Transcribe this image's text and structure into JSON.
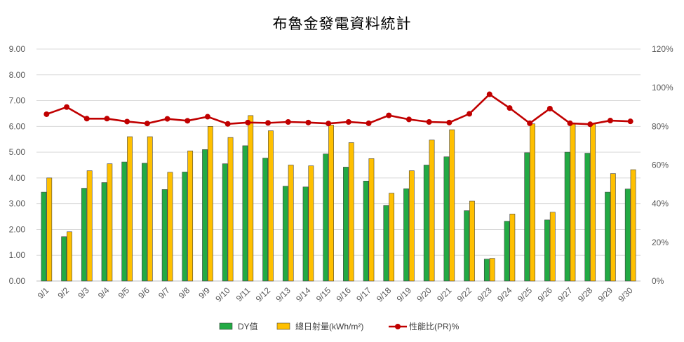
{
  "chart_data": {
    "type": "bar",
    "title": "布魯金發電資料統計",
    "categories": [
      "9/1",
      "9/2",
      "9/3",
      "9/4",
      "9/5",
      "9/6",
      "9/7",
      "9/8",
      "9/9",
      "9/10",
      "9/11",
      "9/12",
      "9/13",
      "9/14",
      "9/15",
      "9/16",
      "9/17",
      "9/18",
      "9/19",
      "9/20",
      "9/21",
      "9/22",
      "9/23",
      "9/24",
      "9/25",
      "9/26",
      "9/27",
      "9/28",
      "9/29",
      "9/30"
    ],
    "series": [
      {
        "name": "DY值",
        "type": "bar",
        "axis": "left",
        "color": "#22aa44",
        "values": [
          3.45,
          1.72,
          3.6,
          3.82,
          4.62,
          4.57,
          3.55,
          4.23,
          5.1,
          4.55,
          5.25,
          4.77,
          3.68,
          3.65,
          4.93,
          4.42,
          3.88,
          2.93,
          3.58,
          4.5,
          4.82,
          2.73,
          0.85,
          2.32,
          4.98,
          2.37,
          5.0,
          4.96,
          3.45,
          3.57
        ]
      },
      {
        "name": "總日射量(kWh/m²)",
        "type": "bar",
        "axis": "left",
        "color": "#ffc000",
        "values": [
          4.0,
          1.91,
          4.28,
          4.55,
          5.6,
          5.6,
          4.22,
          5.05,
          6.0,
          5.57,
          6.42,
          5.83,
          4.5,
          4.47,
          6.05,
          5.37,
          4.75,
          3.41,
          4.28,
          5.47,
          5.87,
          3.1,
          0.88,
          2.6,
          6.1,
          2.67,
          6.13,
          6.1,
          4.17,
          4.32
        ]
      },
      {
        "name": "性能比(PR)%",
        "type": "line",
        "axis": "right",
        "color": "#c00000",
        "values": [
          86.3,
          90.0,
          84.0,
          84.0,
          82.5,
          81.5,
          83.9,
          82.9,
          85.0,
          81.3,
          82.0,
          81.8,
          82.3,
          82.0,
          81.5,
          82.3,
          81.6,
          85.7,
          83.6,
          82.3,
          82.0,
          86.5,
          96.6,
          89.5,
          81.6,
          89.2,
          81.6,
          81.1,
          83.0,
          82.6
        ]
      }
    ],
    "y_left": {
      "min": 0,
      "max": 9,
      "ticks": [
        "0.00",
        "1.00",
        "2.00",
        "3.00",
        "4.00",
        "5.00",
        "6.00",
        "7.00",
        "8.00",
        "9.00"
      ]
    },
    "y_right": {
      "min": 0,
      "max": 120,
      "ticks": [
        "0%",
        "20%",
        "40%",
        "60%",
        "80%",
        "100%",
        "120%"
      ]
    },
    "grid": true,
    "legend_position": "bottom"
  }
}
